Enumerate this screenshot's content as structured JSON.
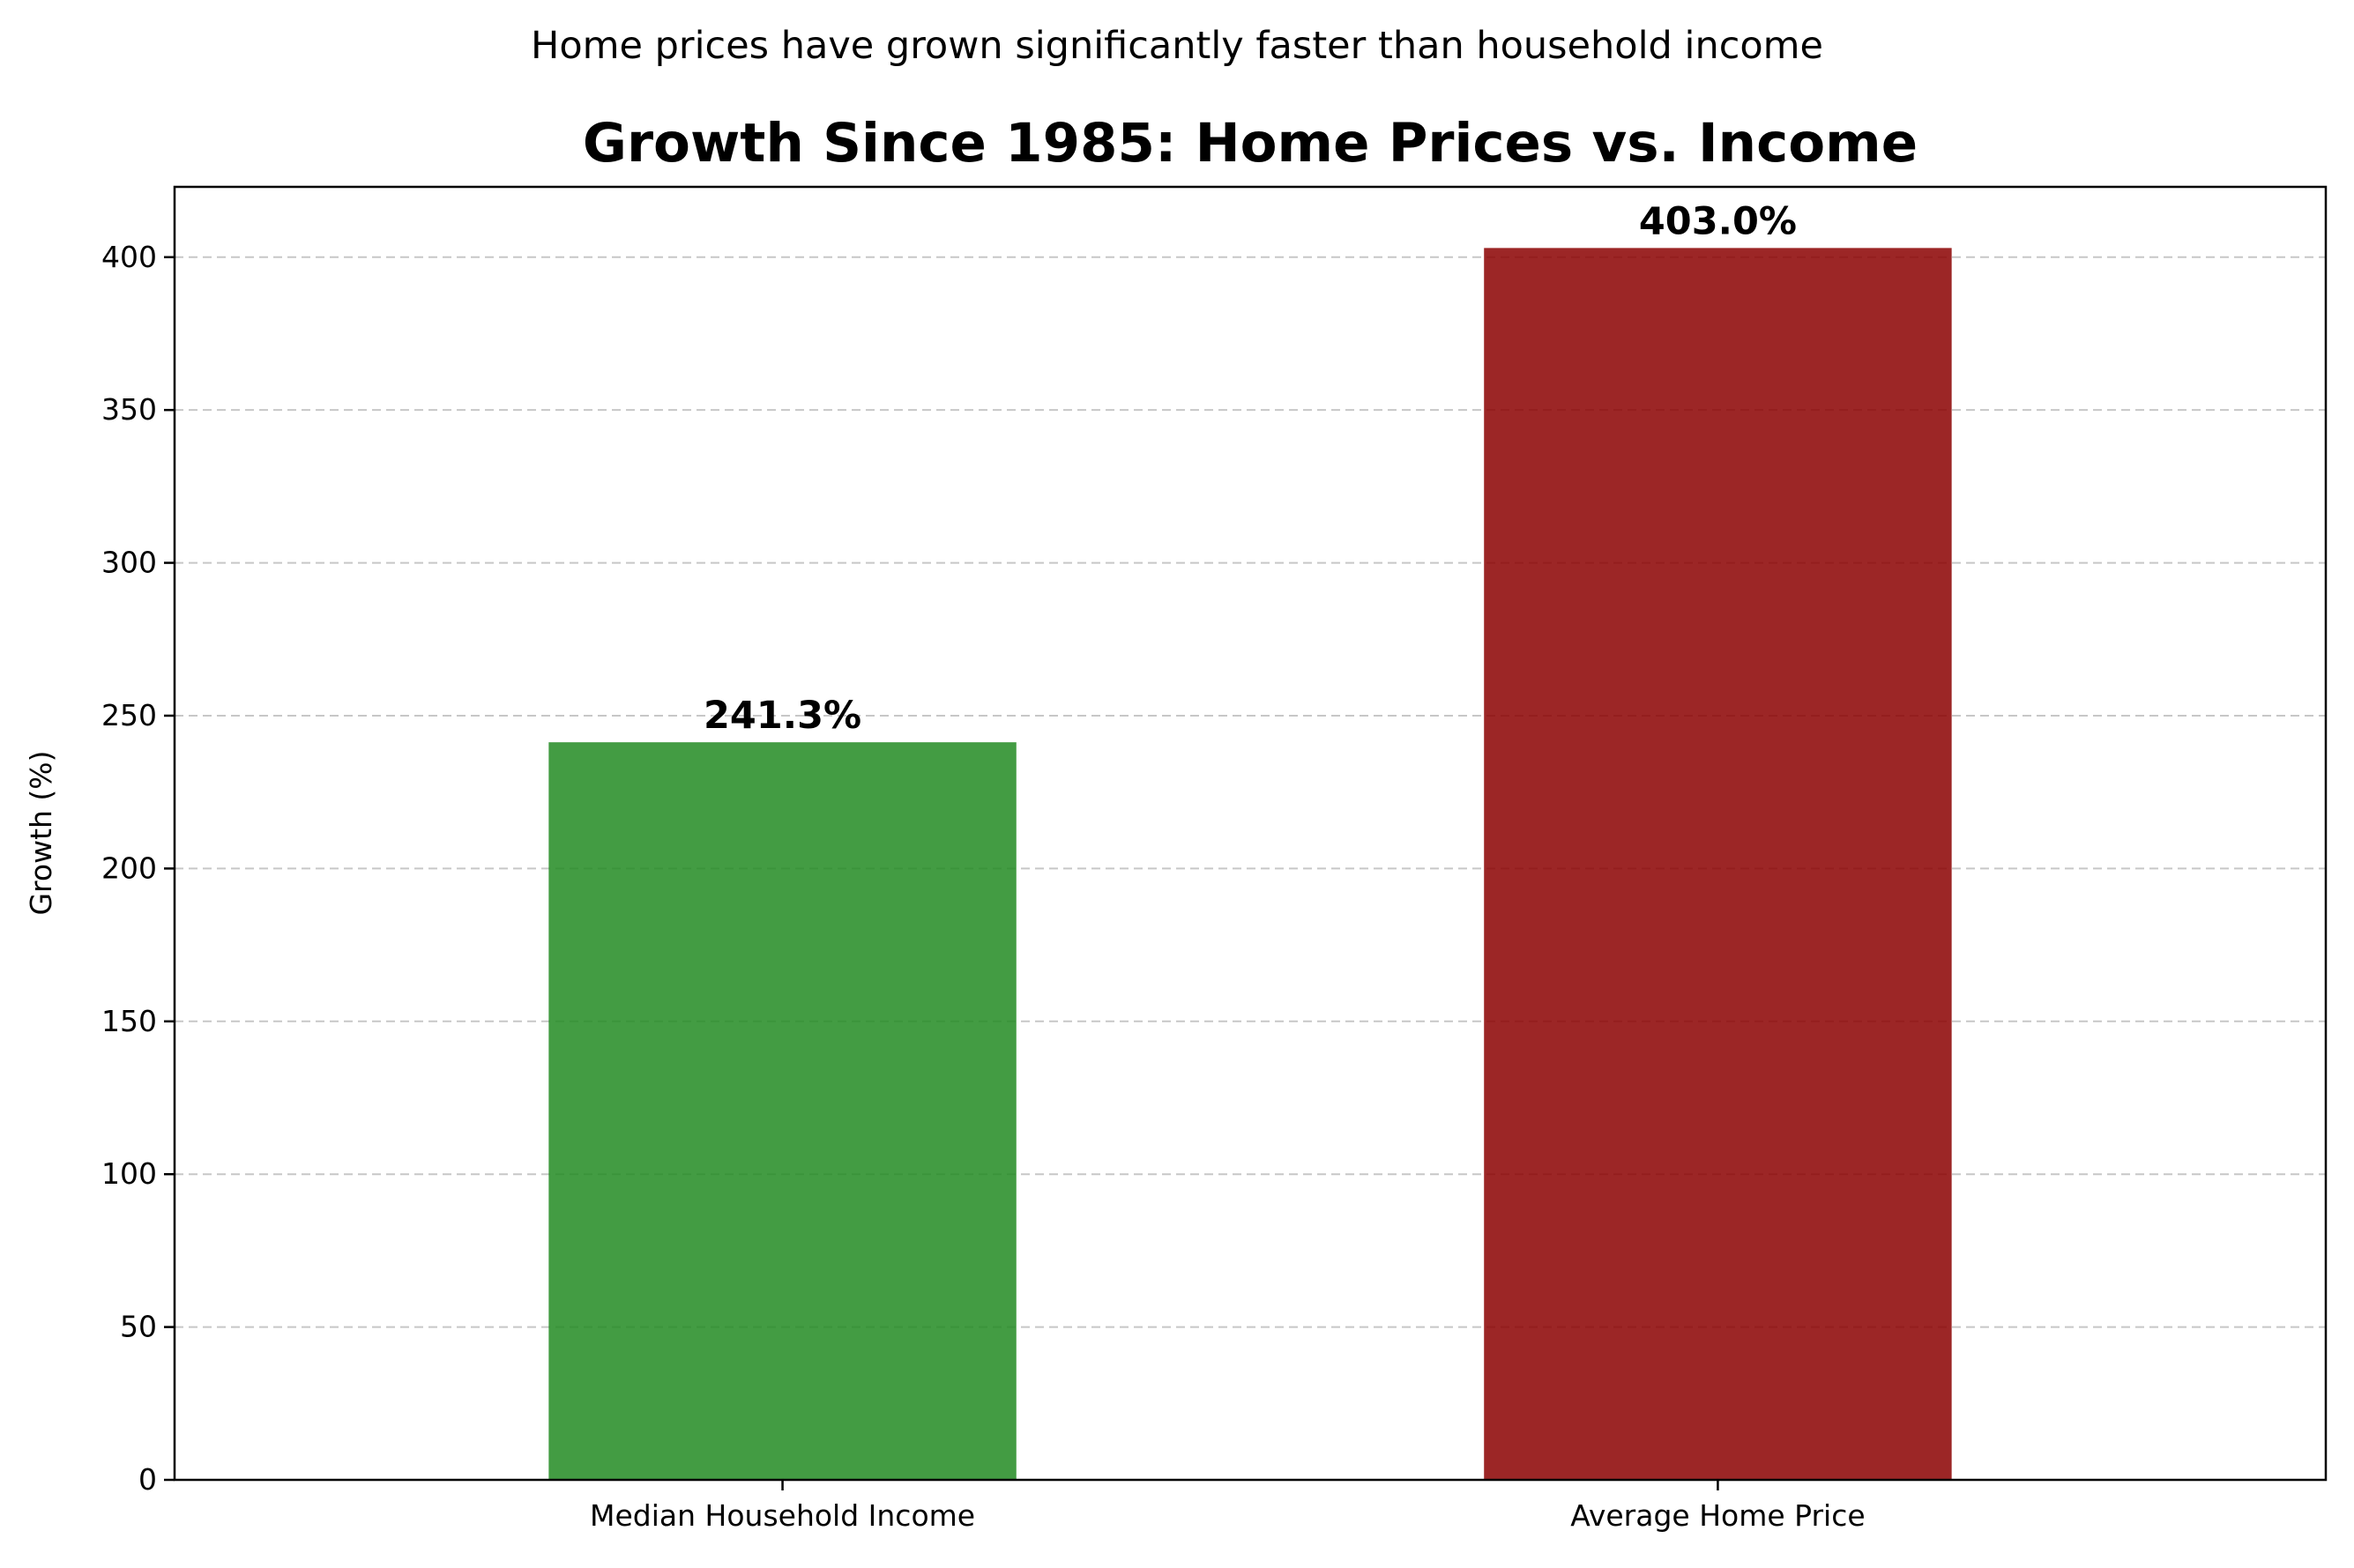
{
  "chart_data": {
    "type": "bar",
    "suptitle": "Home prices have grown significantly faster than household income",
    "title": "Growth Since 1985: Home Prices vs. Income",
    "xlabel": "",
    "ylabel": "Growth (%)",
    "categories": [
      "Median Household Income",
      "Average Home Price"
    ],
    "values": [
      241.3,
      403.0
    ],
    "value_labels": [
      "241.3%",
      "403.0%"
    ],
    "colors": [
      "#228b22",
      "#8b0000"
    ],
    "ylim": [
      0,
      423
    ],
    "yticks": [
      0,
      50,
      100,
      150,
      200,
      250,
      300,
      350,
      400
    ],
    "grid": "y-dashed",
    "legend": "none"
  }
}
